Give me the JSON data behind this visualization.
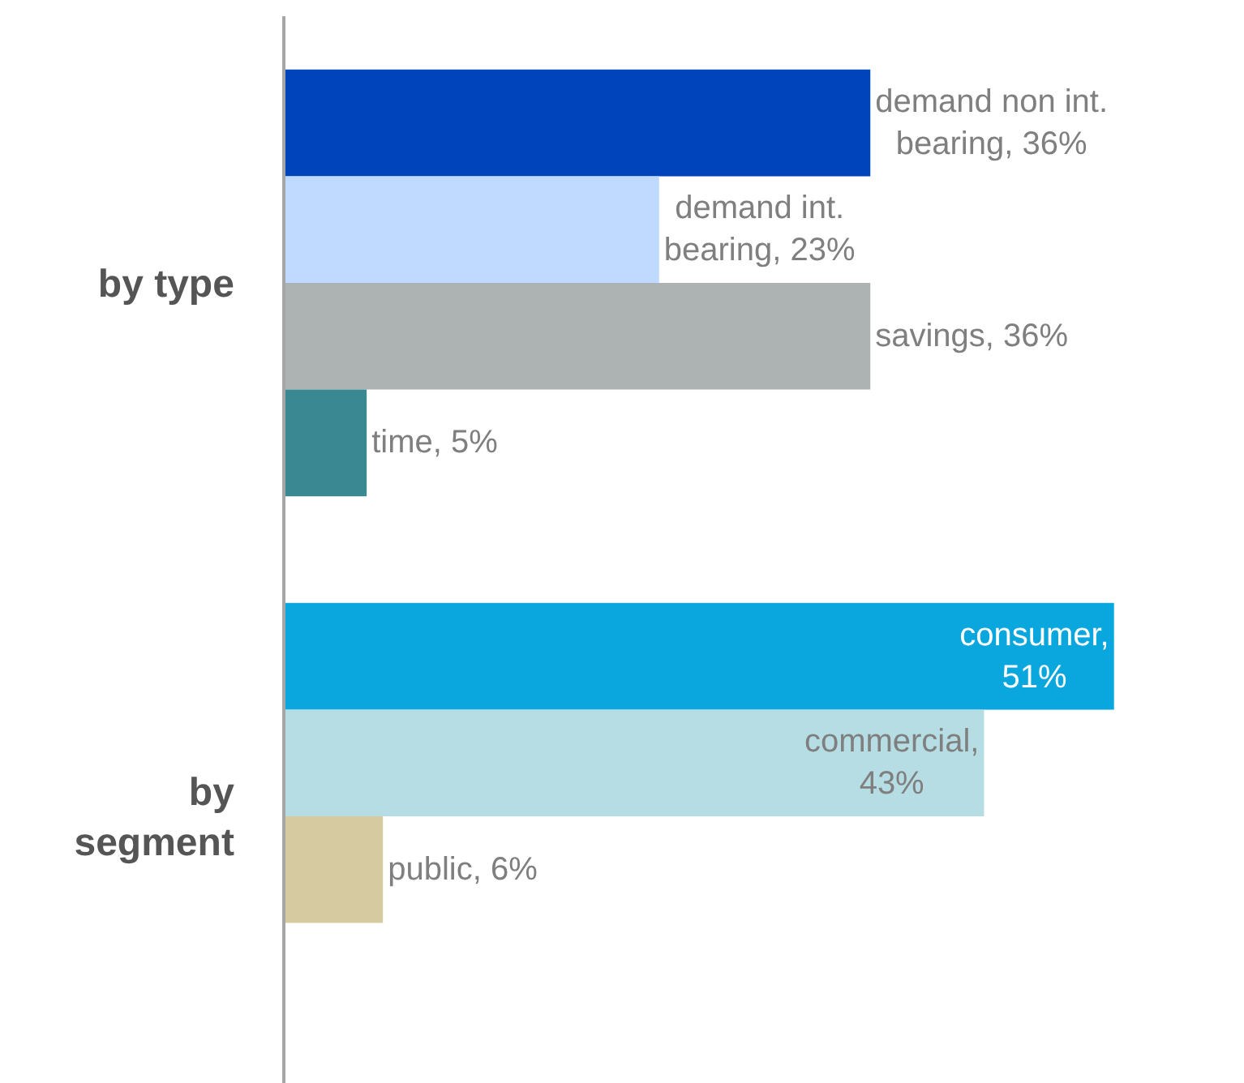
{
  "chart_data": {
    "type": "bar",
    "orientation": "horizontal",
    "categories": [
      "by type",
      "by segment"
    ],
    "series": [
      {
        "colors": [
          "#0044bb",
          "#0aa7df"
        ],
        "values": [
          36,
          51
        ],
        "value_labels": [
          "demand non int. bearing, 36%",
          "consumer, 51%"
        ]
      },
      {
        "colors": [
          "#c0d9ff",
          "#b5dde3"
        ],
        "values": [
          23,
          43
        ],
        "value_labels": [
          "demand int. bearing, 23%",
          "commercial, 43%"
        ]
      },
      {
        "colors": [
          "#adb3b3",
          "#d6cba0"
        ],
        "values": [
          36,
          6
        ],
        "value_labels": [
          "savings, 36%",
          "public, 6%"
        ]
      },
      {
        "colors": [
          "#3a8891",
          null
        ],
        "values": [
          5,
          null
        ],
        "value_labels": [
          "time, 5%",
          null
        ]
      }
    ],
    "xlim": [
      0,
      59
    ],
    "tick_labels": "y"
  }
}
